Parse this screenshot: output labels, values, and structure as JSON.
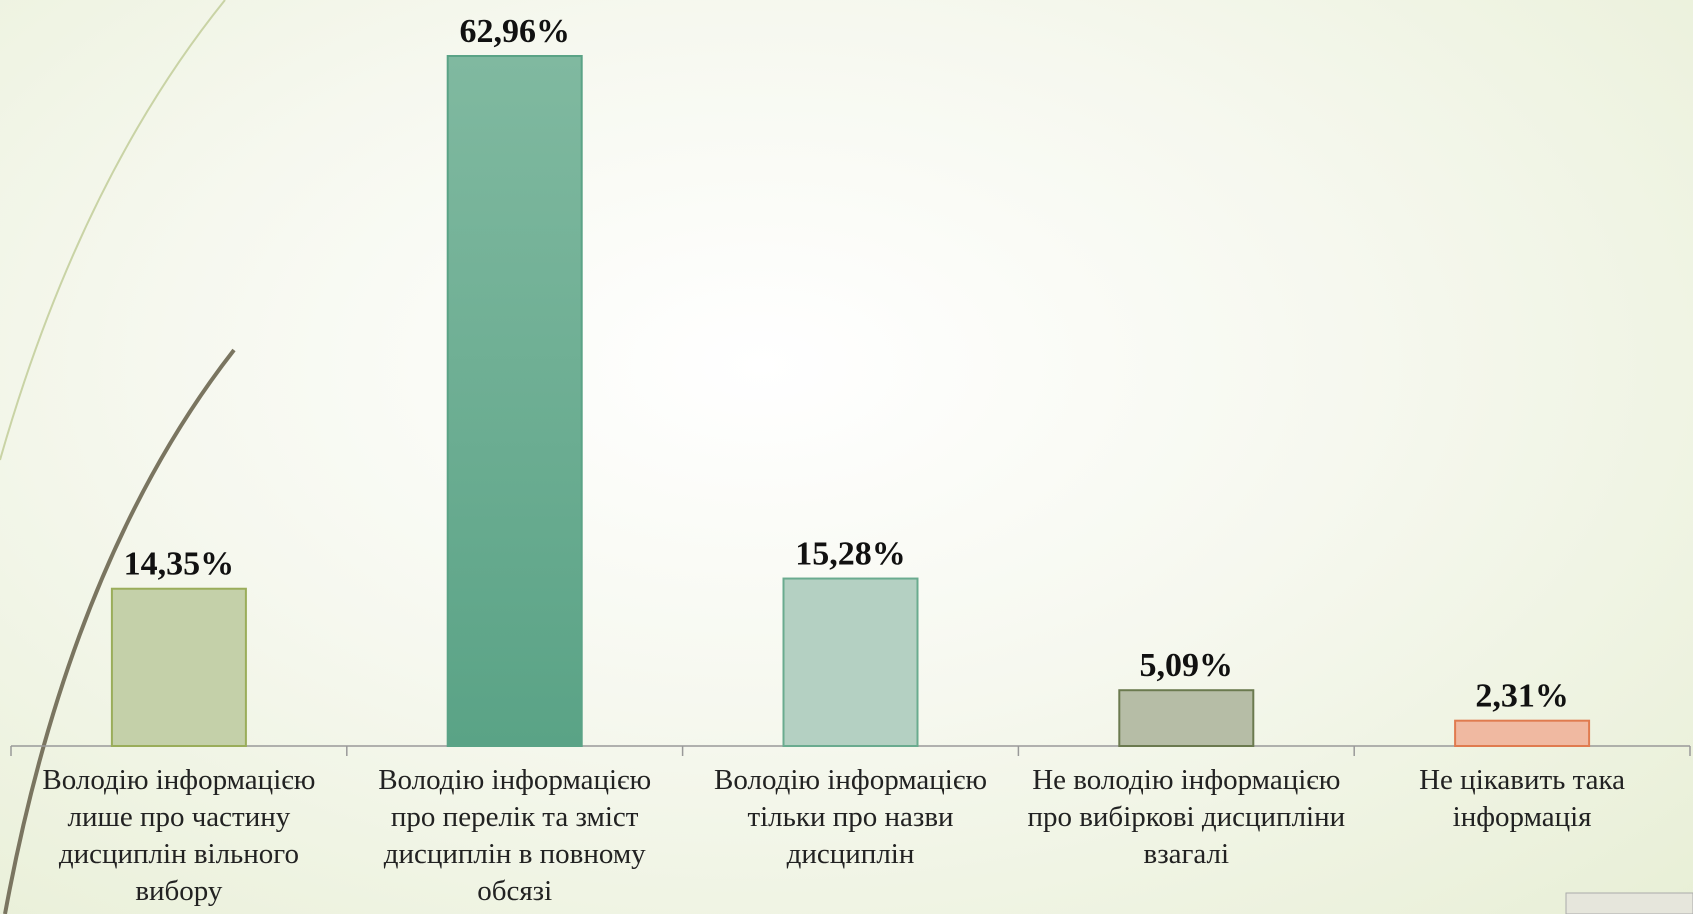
{
  "chart_data": {
    "type": "bar",
    "categories": [
      "Володію інформацією лише про частину дисциплін вільного вибору",
      "Володію інформацією про перелік та зміст дисциплін в повному обсязі",
      "Володію інформацією тільки про назви дисциплін",
      "Не володію інформацією про вибіркові дисципліни взагалі",
      "Не цікавить така інформація"
    ],
    "values": [
      14.35,
      62.96,
      15.28,
      5.09,
      2.31
    ],
    "value_labels": [
      "14,35%",
      "62,96%",
      "15,28%",
      "5,09%",
      "2,31%"
    ],
    "colors": [
      "#c4d0a9",
      "#6bae92",
      "#b4d0c2",
      "#b6bda6",
      "#f0b9a1"
    ],
    "grid": false
  }
}
